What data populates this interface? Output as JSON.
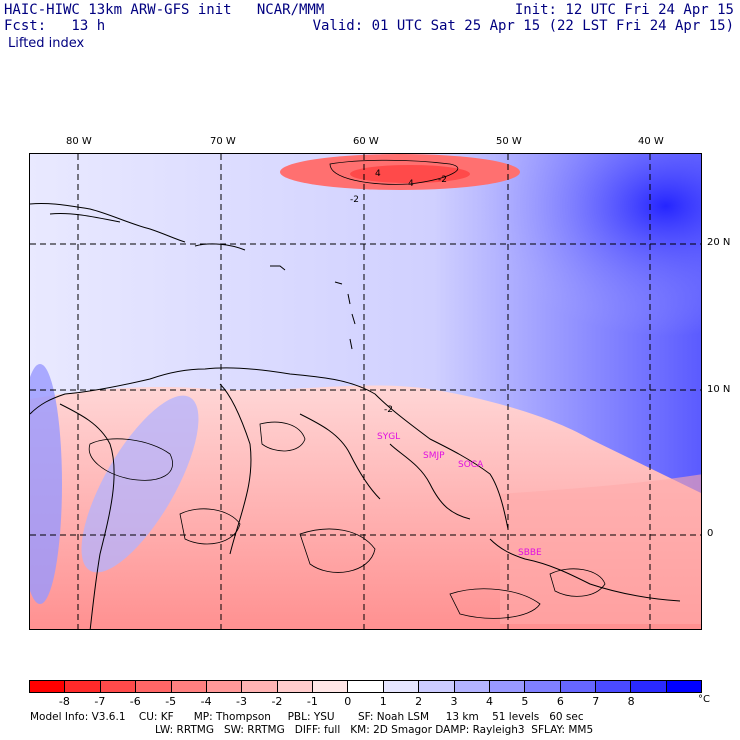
{
  "header": {
    "left_line1": "HAIC-HIWC 13km ARW-GFS init   NCAR/MMM",
    "left_line2": "Fcst:   13 h",
    "field_name": "Lifted index",
    "right_line1": "Init: 12 UTC Fri 24 Apr 15",
    "right_line2": "Valid: 01 UTC Sat 25 Apr 15 (22 LST Fri 24 Apr 15)"
  },
  "map": {
    "lon_labels": [
      "80 W",
      "70 W",
      "60 W",
      "50 W",
      "40 W"
    ],
    "lat_labels": [
      "20 N",
      "10 N",
      "0"
    ],
    "contour_labels": [
      "4",
      "4",
      "-2",
      "-2",
      "-2"
    ],
    "stations": [
      "SYGL",
      "SMJP",
      "SOCA",
      "SBBE"
    ]
  },
  "colorbar": {
    "colors": [
      "#ff0000",
      "#ff2a2a",
      "#ff4a4a",
      "#ff6666",
      "#ff8080",
      "#ff9999",
      "#ffb3b3",
      "#ffcccc",
      "#ffe6e6",
      "#ffffff",
      "#e6e6ff",
      "#ccccff",
      "#b3b3ff",
      "#9999ff",
      "#8080ff",
      "#6666ff",
      "#4a4aff",
      "#2a2aff",
      "#0000ff"
    ],
    "tick_labels": [
      "-8",
      "-7",
      "-6",
      "-5",
      "-4",
      "-3",
      "-2",
      "-1",
      "0",
      "1",
      "2",
      "3",
      "4",
      "5",
      "6",
      "7",
      "8"
    ],
    "unit": "°C"
  },
  "footer": {
    "line1": "Model Info: V3.6.1    CU: KF      MP: Thompson     PBL: YSU       SF: Noah LSM     13 km    51 levels   60 sec",
    "line2": "LW: RRTMG   SW: RRTMG   DIFF: full   KM: 2D Smagor DAMP: Rayleigh3  SFLAY: MM5"
  },
  "colors": {
    "text": "#000080",
    "map_border": "#000000",
    "station": "#e010e0"
  }
}
